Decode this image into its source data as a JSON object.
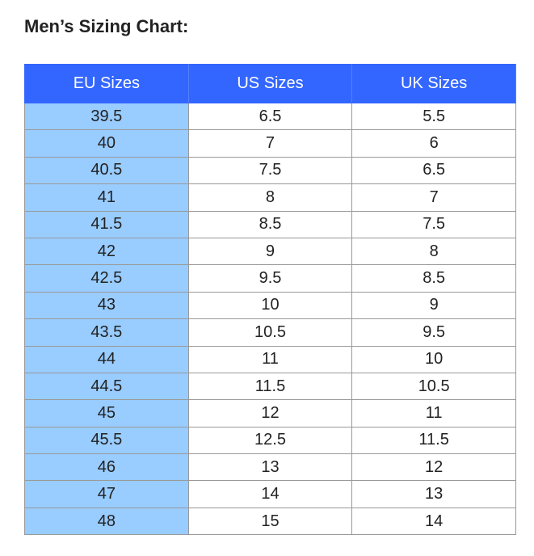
{
  "header": {
    "title": "Men’s Sizing Chart:"
  },
  "table": {
    "columns": [
      "EU Sizes",
      "US Sizes",
      "UK Sizes"
    ],
    "rows": [
      [
        "39.5",
        "6.5",
        "5.5"
      ],
      [
        "40",
        "7",
        "6"
      ],
      [
        "40.5",
        "7.5",
        "6.5"
      ],
      [
        "41",
        "8",
        "7"
      ],
      [
        "41.5",
        "8.5",
        "7.5"
      ],
      [
        "42",
        "9",
        "8"
      ],
      [
        "42.5",
        "9.5",
        "8.5"
      ],
      [
        "43",
        "10",
        "9"
      ],
      [
        "43.5",
        "10.5",
        "9.5"
      ],
      [
        "44",
        "11",
        "10"
      ],
      [
        "44.5",
        "11.5",
        "10.5"
      ],
      [
        "45",
        "12",
        "11"
      ],
      [
        "45.5",
        "12.5",
        "11.5"
      ],
      [
        "46",
        "13",
        "12"
      ],
      [
        "47",
        "14",
        "13"
      ],
      [
        "48",
        "15",
        "14"
      ]
    ]
  }
}
